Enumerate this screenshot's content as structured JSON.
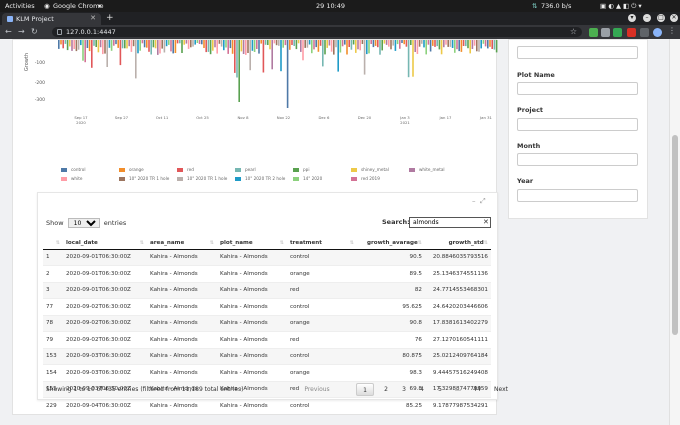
{
  "os": {
    "activities": "Activities",
    "app_menu": "Google Chrome",
    "clock": "29  10:49",
    "net_speed": "736.0 b/s"
  },
  "browser": {
    "tab_title": "KLM Project",
    "url": "127.0.0.1:4447"
  },
  "chart_data": {
    "type": "bar",
    "ylabel": "Growth",
    "yticks": [
      "-100",
      "-200",
      "-300"
    ],
    "xticks": [
      "Sep 17\n2020",
      "Sep 27",
      "Oct 11",
      "Oct 25",
      "Nov 8",
      "Nov 22",
      "Dec 6",
      "Dec 20",
      "Jan 3\n2021",
      "Jan 17",
      "Jan 31"
    ],
    "legend": [
      {
        "name": "control",
        "color": "#4e79a7"
      },
      {
        "name": "orange",
        "color": "#f28e2b"
      },
      {
        "name": "red",
        "color": "#e15759"
      },
      {
        "name": "pearl",
        "color": "#76b7b2"
      },
      {
        "name": "ppi",
        "color": "#59a14f"
      },
      {
        "name": "shiney_metal",
        "color": "#edc948"
      },
      {
        "name": "white_metal",
        "color": "#b07aa1"
      },
      {
        "name": "white",
        "color": "#ff9da7"
      },
      {
        "name": "10\" 2020 TR 1 hole",
        "color": "#9c755f"
      },
      {
        "name": "10\" 2020 TR 1 hole",
        "color": "#bab0ac"
      },
      {
        "name": "10\" 2020 TR 2 hole",
        "color": "#1f9bc7"
      },
      {
        "name": "14\" 2020",
        "color": "#8cd17d"
      },
      {
        "name": "red 2019",
        "color": "#d37295"
      }
    ]
  },
  "table": {
    "length_label_pre": "Show",
    "length_value": "10",
    "length_label_post": "entries",
    "search_label": "Search:",
    "search_value": "almonds",
    "columns": [
      "",
      "local_date",
      "area_name",
      "plot_name",
      "treatment",
      "growth_avarage",
      "growth_std"
    ],
    "rows": [
      [
        "1",
        "2020-09-01T06:30:00Z",
        "Kahira - Almonds",
        "Kahira - Almonds",
        "control",
        "90.5",
        "20.8846035793516"
      ],
      [
        "2",
        "2020-09-01T06:30:00Z",
        "Kahira - Almonds",
        "Kahira - Almonds",
        "orange",
        "89.5",
        "25.1346374551136"
      ],
      [
        "3",
        "2020-09-01T06:30:00Z",
        "Kahira - Almonds",
        "Kahira - Almonds",
        "red",
        "82",
        "24.7714553468301"
      ],
      [
        "77",
        "2020-09-02T06:30:00Z",
        "Kahira - Almonds",
        "Kahira - Almonds",
        "control",
        "95.625",
        "24.6420203446606"
      ],
      [
        "78",
        "2020-09-02T06:30:00Z",
        "Kahira - Almonds",
        "Kahira - Almonds",
        "orange",
        "90.8",
        "17.8381613402279"
      ],
      [
        "79",
        "2020-09-02T06:30:00Z",
        "Kahira - Almonds",
        "Kahira - Almonds",
        "red",
        "76",
        "27.1270160541111"
      ],
      [
        "153",
        "2020-09-03T06:30:00Z",
        "Kahira - Almonds",
        "Kahira - Almonds",
        "control",
        "80.875",
        "25.0212409764184"
      ],
      [
        "154",
        "2020-09-03T06:30:00Z",
        "Kahira - Almonds",
        "Kahira - Almonds",
        "orange",
        "98.3",
        "9.44457516249408"
      ],
      [
        "155",
        "2020-09-03T06:30:00Z",
        "Kahira - Almonds",
        "Kahira - Almonds",
        "red",
        "69.8",
        "17.3298874779959"
      ],
      [
        "229",
        "2020-09-04T06:30:00Z",
        "Kahira - Almonds",
        "Kahira - Almonds",
        "control",
        "85.25",
        "9.17877987534291"
      ]
    ],
    "info": "Showing 1 to 10 of 435 entries (filtered from 11,189 total entries)",
    "pagination": [
      "Previous",
      "1",
      "2",
      "3",
      "4",
      "5",
      "…",
      "44",
      "Next"
    ]
  },
  "filters": {
    "labels": [
      "Plot Name",
      "Project",
      "Month",
      "Year"
    ]
  }
}
